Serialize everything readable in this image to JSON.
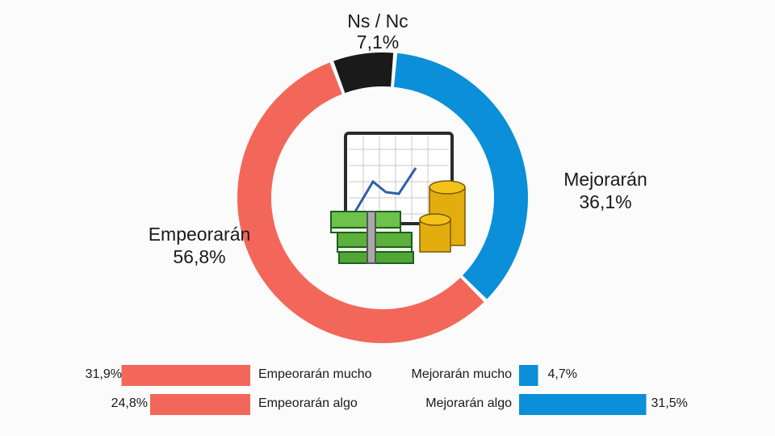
{
  "chart_data": [
    {
      "type": "pie",
      "variant": "donut",
      "slices": [
        {
          "label": "Mejorarán",
          "value": 36.1,
          "value_text": "36,1%",
          "color": "#0a8fd8"
        },
        {
          "label": "Empeorarán",
          "value": 56.8,
          "value_text": "56,8%",
          "color": "#f2675a"
        },
        {
          "label": "Ns / Nc",
          "value": 7.1,
          "value_text": "7,1%",
          "color": "#1a1a1a"
        }
      ],
      "center_icon": "money-chart-icon"
    },
    {
      "type": "bar",
      "orientation": "horizontal",
      "bars": [
        {
          "label": "Empeorarán mucho",
          "value": 31.9,
          "value_text": "31,9%",
          "color": "#f2675a",
          "direction": "left"
        },
        {
          "label": "Empeorarán algo",
          "value": 24.8,
          "value_text": "24,8%",
          "color": "#f2675a",
          "direction": "left"
        },
        {
          "label": "Mejorarán mucho",
          "value": 4.7,
          "value_text": "4,7%",
          "color": "#0a8fd8",
          "direction": "right"
        },
        {
          "label": "Mejorarán algo",
          "value": 31.5,
          "value_text": "31,5%",
          "color": "#0a8fd8",
          "direction": "right"
        }
      ]
    }
  ]
}
